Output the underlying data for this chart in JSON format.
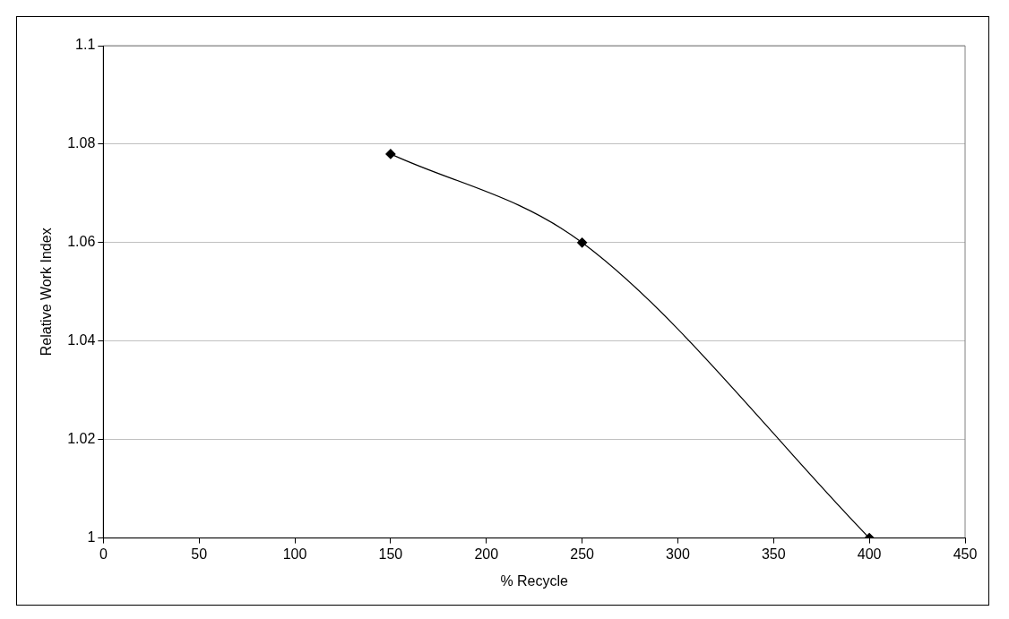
{
  "chart_data": {
    "type": "line",
    "xlabel": "% Recycle",
    "ylabel": "Relative Work Index",
    "x": [
      150,
      250,
      400
    ],
    "series": [
      {
        "color": "#000000",
        "values": [
          1.078,
          1.06,
          1.0
        ]
      }
    ],
    "xlim": [
      0,
      450
    ],
    "xticks": [
      0,
      50,
      100,
      150,
      200,
      250,
      300,
      350,
      400,
      450
    ],
    "ylim": [
      1,
      1.1
    ],
    "yticks": [
      1,
      1.02,
      1.04,
      1.06,
      1.08,
      1.1
    ],
    "grid": "y",
    "legend": false,
    "marker": "diamond",
    "line_style": "solid"
  }
}
